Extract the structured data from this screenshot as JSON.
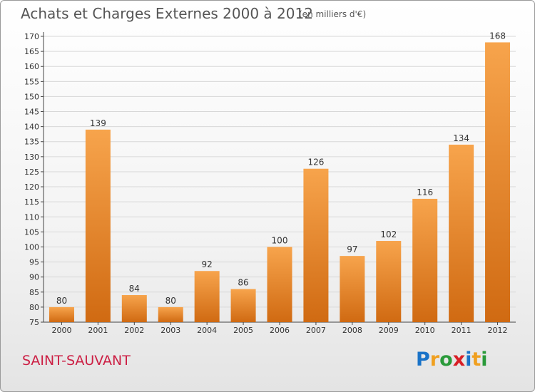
{
  "header": {
    "title": "Achats et Charges Externes 2000 à 2012",
    "subtitle": "(en milliers d'€)"
  },
  "footer": {
    "place": "SAINT-SAUVANT",
    "logo": [
      "P",
      "r",
      "o",
      "x",
      "i",
      "t",
      "i"
    ],
    "logo_colors": [
      "#1a73c8",
      "#f0a020",
      "#2a9a3a",
      "#d81f26",
      "#1a73c8",
      "#f0a020",
      "#2a9a3a"
    ]
  },
  "colors": {
    "bar_top": "#f7a44c",
    "bar_bottom": "#d06a12",
    "grid": "#d8d8d8",
    "axis": "#444444"
  },
  "chart_data": {
    "type": "bar",
    "categories": [
      "2000",
      "2001",
      "2002",
      "2003",
      "2004",
      "2005",
      "2006",
      "2007",
      "2008",
      "2009",
      "2010",
      "2011",
      "2012"
    ],
    "values": [
      80,
      139,
      84,
      80,
      92,
      86,
      100,
      126,
      97,
      102,
      116,
      134,
      168
    ],
    "ylim": [
      75,
      170
    ],
    "yticks": [
      75,
      80,
      85,
      90,
      95,
      100,
      105,
      110,
      115,
      120,
      125,
      130,
      135,
      140,
      145,
      150,
      155,
      160,
      165,
      170
    ],
    "grid": true,
    "xlabel": "",
    "ylabel": ""
  }
}
